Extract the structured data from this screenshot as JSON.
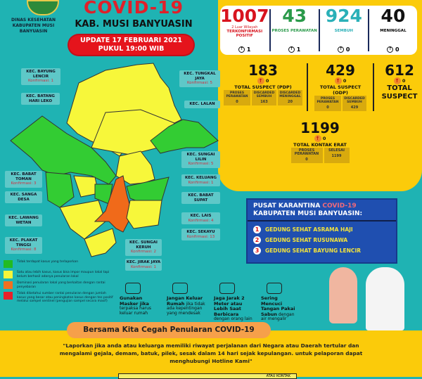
{
  "header": {
    "agency": "DINAS KESEHATAN KABUPATEN MUSI BANYUASIN",
    "title": "COVID-19",
    "subtitle": "KAB. MUSI BANYUASIN",
    "update_line1": "UPDATE 17 FEBRUARI 2021",
    "update_line2": "PUKUL 19:00 WIB"
  },
  "summary": [
    {
      "value": "1007",
      "note": "2 Luar Wilayah",
      "label": "TERKONFIRMASI POSITIF",
      "delta": "1",
      "color": "#d8141e"
    },
    {
      "value": "43",
      "label": "PROSES PERAWATAN",
      "delta": "1",
      "color": "#2a9a4a"
    },
    {
      "value": "924",
      "label": "SEMBUH",
      "delta": "0",
      "color": "#2ab0b8"
    },
    {
      "value": "40",
      "label": "MENINGGAL",
      "delta": "0",
      "color": "#111111"
    }
  ],
  "suspect": {
    "pdp": {
      "value": "183",
      "delta": "0",
      "label": "TOTAL SUSPECT (PDP)",
      "items": [
        {
          "label": "PROSES PERAWATAN",
          "value": "0"
        },
        {
          "label": "DISCARDED SEMBUH",
          "value": "163"
        },
        {
          "label": "DISCARDED MENINGGAL",
          "value": "20"
        }
      ]
    },
    "odp": {
      "value": "429",
      "delta": "0",
      "label": "TOTAL SUSPECT (ODP)",
      "items": [
        {
          "label": "PROSES PERAWATAN",
          "value": "0"
        },
        {
          "label": "DISCARDED SEMBUH",
          "value": "429"
        }
      ]
    },
    "total": {
      "value": "612",
      "delta": "0",
      "label": "TOTAL SUSPECT"
    },
    "kontak": {
      "value": "1199",
      "delta": "0",
      "label": "TOTAL KONTAK ERAT",
      "items": [
        {
          "label": "PROSES PERAWATAN",
          "value": "0"
        },
        {
          "label": "SELESAI",
          "value": "1199"
        }
      ]
    }
  },
  "map_labels": [
    {
      "name": "KEC. BAYUNG LENCIR",
      "konf": "Konfirmasi: 1"
    },
    {
      "name": "KEC. BATANG HARI LEKO",
      "konf": ""
    },
    {
      "name": "KEC. TUNGKAL JAYA",
      "konf": "Konfirmasi: 5"
    },
    {
      "name": "KEC. LALAN",
      "konf": ""
    },
    {
      "name": "KEC. SUNGAI LILIN",
      "konf": "Konfirmasi: 5"
    },
    {
      "name": "KEC. KELUANG",
      "konf": "Konfirmasi: 1"
    },
    {
      "name": "KEC. BABAT SUPAT",
      "konf": ""
    },
    {
      "name": "KEC. LAIS",
      "konf": "Konfirmasi: 4"
    },
    {
      "name": "KEC. SEKAYU",
      "konf": "Konfirmasi: 13"
    },
    {
      "name": "KEC. SUNGAI KERUH",
      "konf": "Konfirmasi: 2"
    },
    {
      "name": "KEC. JIRAK JAYA",
      "konf": "Konfirmasi: 1"
    },
    {
      "name": "KEC. BABAT TOMAN",
      "konf": "Konfirmasi: 3"
    },
    {
      "name": "KEC. SANGA DESA",
      "konf": ""
    },
    {
      "name": "KEC. LAWANG WETAN",
      "konf": ""
    },
    {
      "name": "KEC. PLAKAT TINGGI",
      "konf": "Konfirmasi: 8"
    }
  ],
  "legend": [
    {
      "color": "#22bb22",
      "text": "Tidak terdapat kasus yang terlaporkan"
    },
    {
      "color": "#f5f53a",
      "text": "Satu atau lebih kasus, kasus bisa impor maupun lokal tapi belum berhasil adanya penularan lokal"
    },
    {
      "color": "#f07020",
      "text": "Dominasi penularan lokal yang berkaitan dengan rantai penyebaran"
    },
    {
      "color": "#e8202a",
      "text": "Tidak diketahui sumber rantai penularan dengan jumlah kasus yang besar atau peningkatan kasus dengan tes positif melalui sampel sentinel (pengujian sampel secara masif)"
    }
  ],
  "karantina": {
    "title1": "PUSAT KARANTINA ",
    "title_red": "COVID-19",
    "title2": "KABUPATEN MUSI BANYUASIN:",
    "items": [
      "GEDUNG SEHAT ASRAMA HAJI",
      "GEDUNG SEHAT RUSUNAWA",
      "GEDUNG SEHAT BAYUNG LENCIR"
    ]
  },
  "tips": [
    {
      "bold": "Gunakan Masker jika",
      "text": "terpaksa harus keluar rumah",
      "icon": "mask-icon"
    },
    {
      "bold": "Jangan Keluar Rumah",
      "text": "jika tidak ada kepentingan yang mendesak",
      "icon": "house-icon"
    },
    {
      "bold": "Jaga Jarak 2 Meter atau Lebih Saat Berbicara",
      "text": "dengan orang lain",
      "icon": "distance-icon"
    },
    {
      "bold": "Sering Mencuci Tangan Pakai Sabun",
      "text": "dengan air mengalir",
      "icon": "handwash-icon"
    }
  ],
  "footer": {
    "slogan": "Bersama Kita Cegah Penularan COVID-19",
    "quote": "\"Laporkan jika anda atau keluarga memiliki riwayat perjalanan dari Negara atau Daerah tertular dan mengalami gejala, demam, batuk, pilek, sesak dalam 14 hari sejak kepulangan. untuk pelaporan dapat menghubungi  Hotline Kami\"",
    "hotline": "ATAU KONTAK"
  }
}
